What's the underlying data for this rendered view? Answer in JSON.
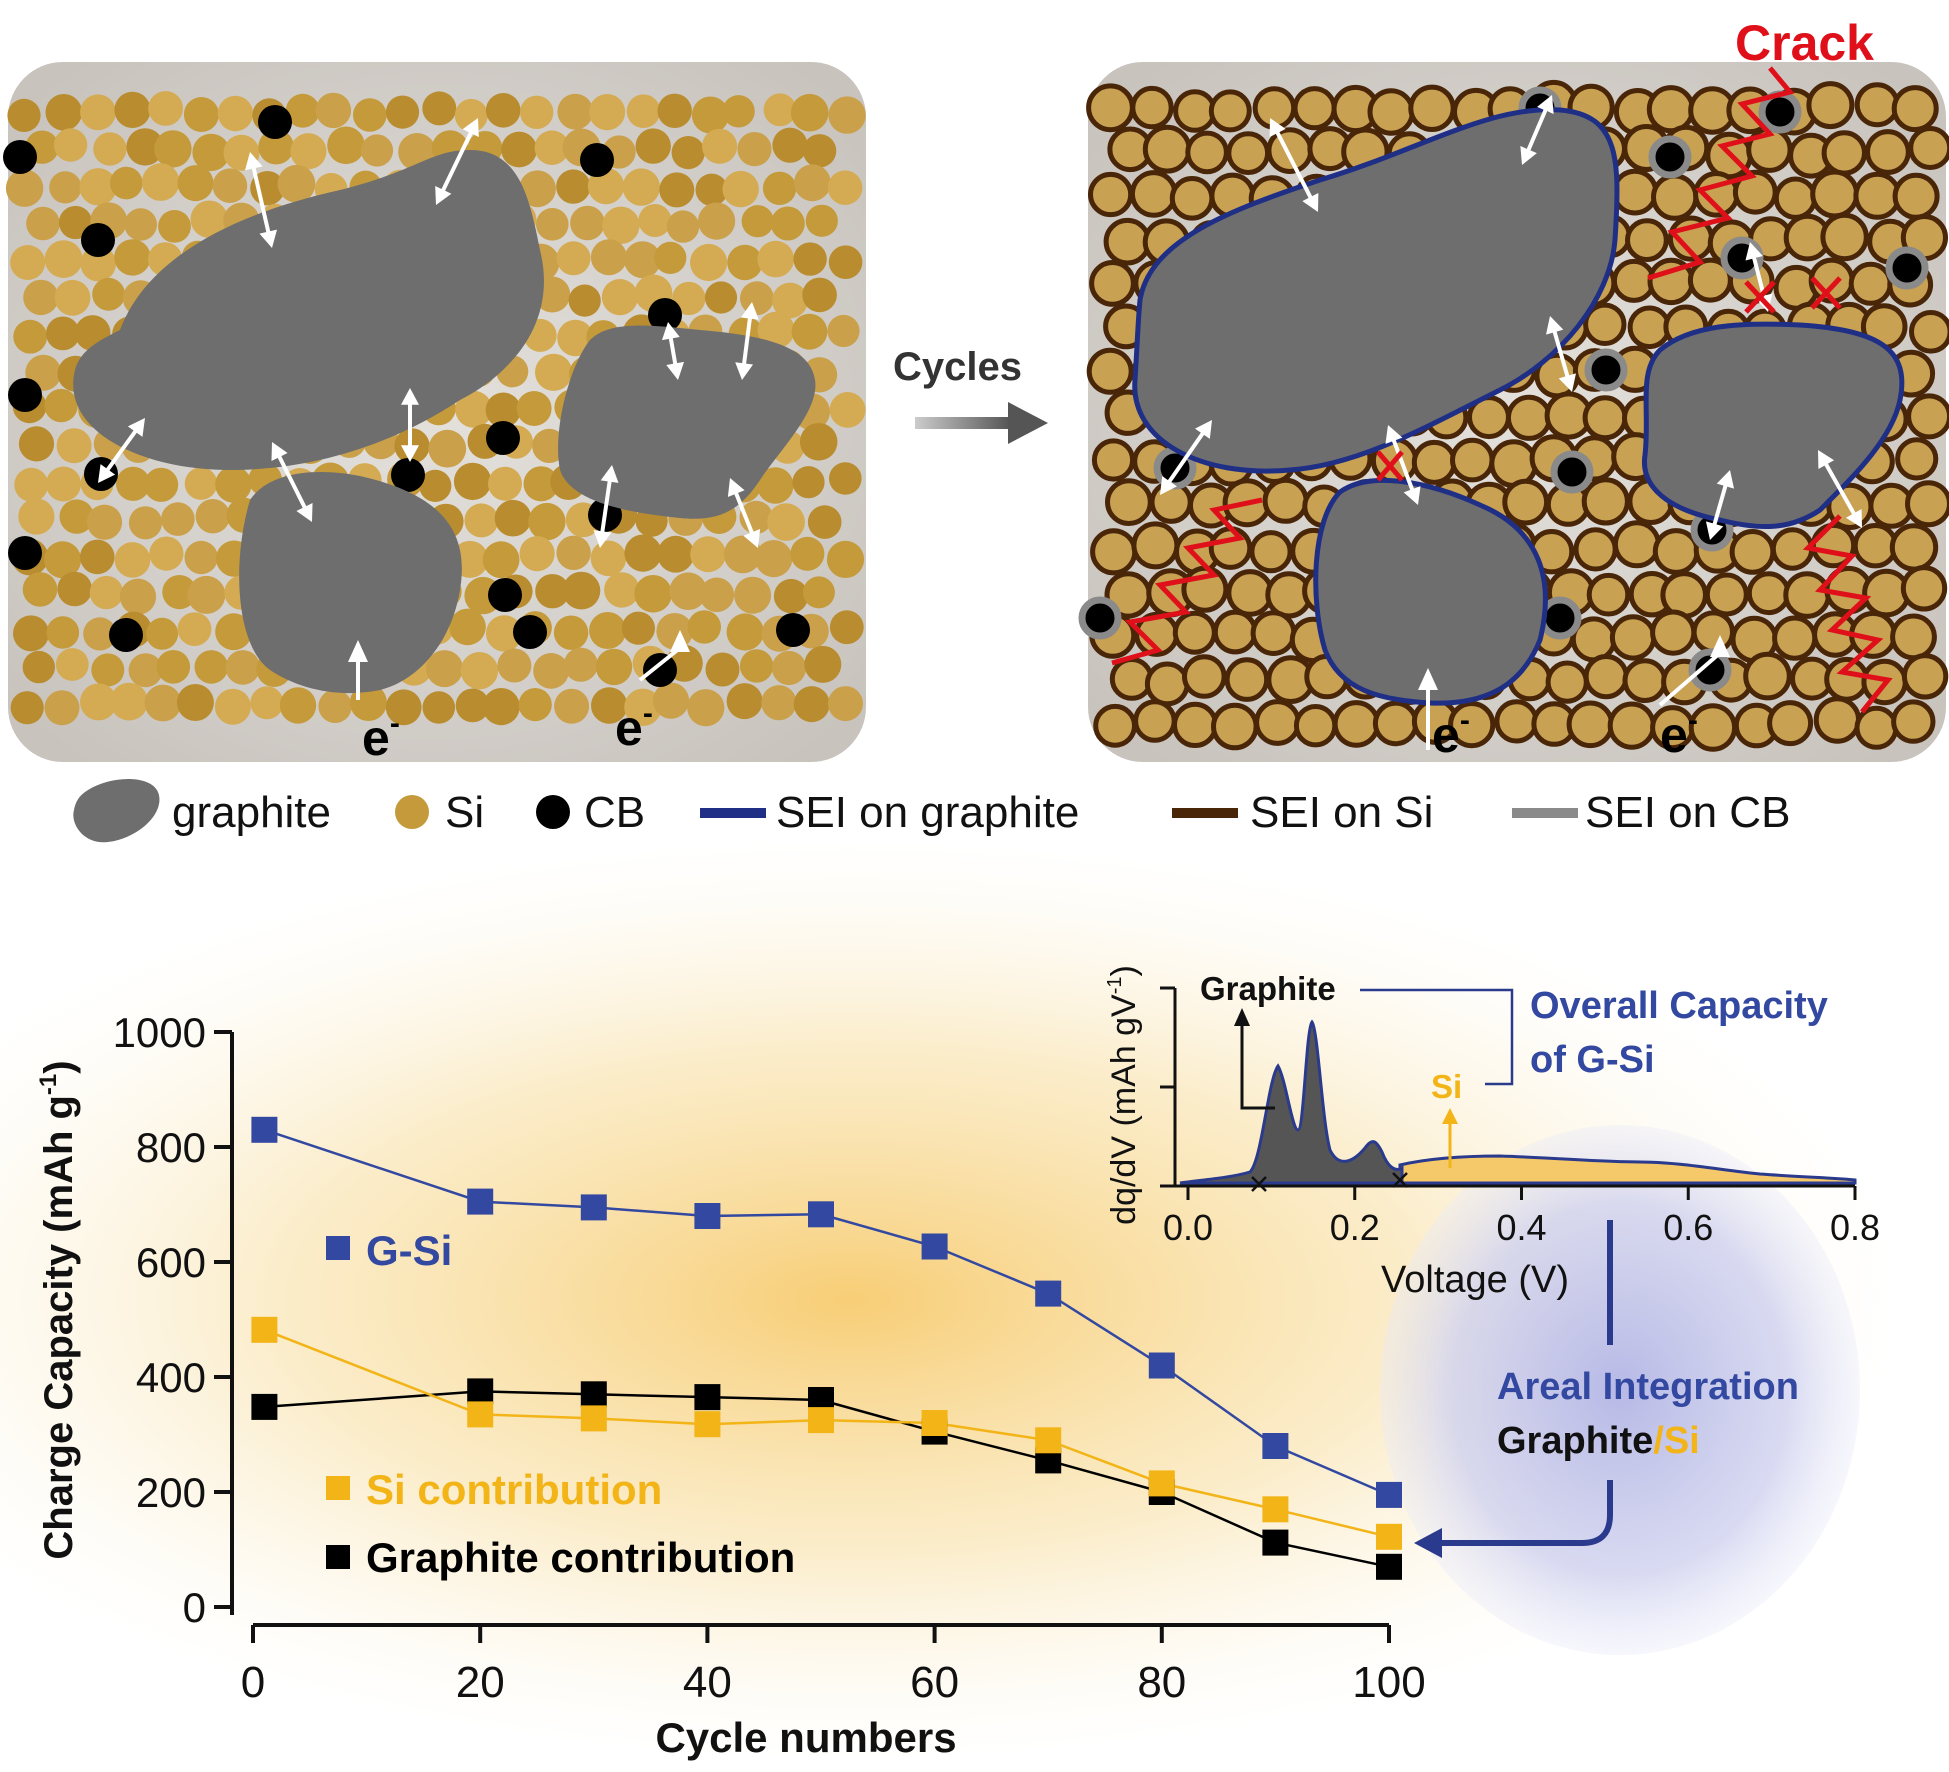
{
  "labels": {
    "crack": "Crack",
    "cycles": "Cycles",
    "electron": "e",
    "electron_sup": "-"
  },
  "legend": [
    {
      "id": "graphite",
      "label": "graphite",
      "color": "#6e6e6e",
      "kind": "blob"
    },
    {
      "id": "si",
      "label": "Si",
      "color": "#c49a3a",
      "kind": "dot"
    },
    {
      "id": "cb",
      "label": "CB",
      "color": "#000000",
      "kind": "dot"
    },
    {
      "id": "sei-graphite",
      "label": "SEI on graphite",
      "color": "#1f2f86",
      "kind": "line"
    },
    {
      "id": "sei-si",
      "label": "SEI on Si",
      "color": "#4a2608",
      "kind": "line"
    },
    {
      "id": "sei-cb",
      "label": "SEI on CB",
      "color": "#8a8a8a",
      "kind": "line"
    }
  ],
  "colors": {
    "gsi": "#3348a0",
    "si": "#f2b417",
    "graphite_line": "#000000",
    "inset_line": "#2a3a8c",
    "inset_fill_graphite": "#555555",
    "inset_fill_si": "#f5c86a",
    "crack": "#e0101a",
    "panel": "#d8d4cf"
  },
  "chart_data": [
    {
      "type": "line",
      "xlabel": "Cycle numbers",
      "ylabel": "Charge Capacity (mAh g",
      "ylabel_sup": "-1",
      "ylabel_end": ")",
      "xlim": [
        0,
        100
      ],
      "ylim": [
        0,
        1000
      ],
      "xticks": [
        0,
        20,
        40,
        60,
        80,
        100
      ],
      "yticks": [
        0,
        200,
        400,
        600,
        800,
        1000
      ],
      "x": [
        1,
        20,
        30,
        40,
        50,
        60,
        70,
        80,
        90,
        100
      ],
      "series": [
        {
          "id": "gsi",
          "name": "G-Si",
          "color": "#3348a0",
          "values": [
            830,
            705,
            695,
            680,
            683,
            627,
            545,
            420,
            280,
            195
          ]
        },
        {
          "id": "si",
          "name": "Si contribution",
          "color": "#f2b417",
          "values": [
            482,
            335,
            328,
            318,
            325,
            320,
            290,
            215,
            170,
            122
          ]
        },
        {
          "id": "graphite",
          "name": "Graphite contribution",
          "color": "#000000",
          "values": [
            348,
            375,
            370,
            365,
            360,
            305,
            255,
            200,
            112,
            70
          ]
        }
      ]
    },
    {
      "type": "area",
      "xlabel": "Voltage (V)",
      "ylabel": "dq/dV (mAh gV",
      "ylabel_sup": "-1",
      "ylabel_end": ")",
      "xlim": [
        0,
        0.8
      ],
      "xticks": [
        0.0,
        0.2,
        0.4,
        0.6,
        0.8
      ],
      "xtick_labels": [
        "0.0",
        "0.2",
        "0.4",
        "0.6",
        "0.8"
      ],
      "annotations": {
        "graphite": "Graphite",
        "si": "Si",
        "overall_line1": "Overall Capacity",
        "overall_line2": "of G-Si",
        "integration_line1": "Areal Integration",
        "integration_graphite": "Graphite",
        "integration_slash": "/",
        "integration_si": "Si"
      }
    }
  ]
}
